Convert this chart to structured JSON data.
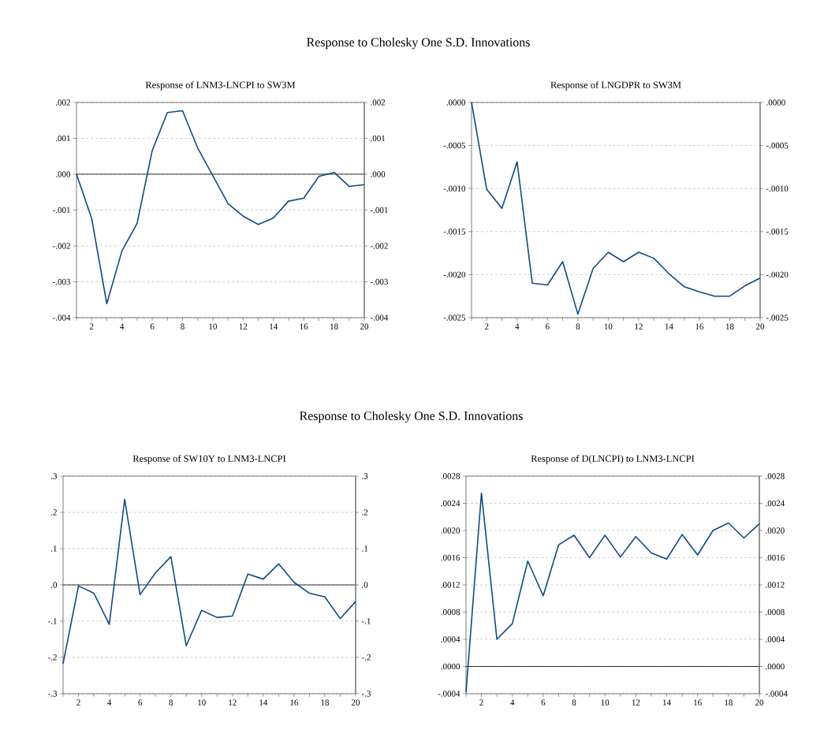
{
  "chart_data": [
    {
      "type": "line",
      "title": "Response of LNM3-LNCPI to SW3M",
      "annotations": [
        "Response to Cholesky One S.D. Innovations"
      ],
      "x": [
        1,
        2,
        3,
        4,
        5,
        6,
        7,
        8,
        9,
        10,
        11,
        12,
        13,
        14,
        15,
        16,
        17,
        18,
        19,
        20
      ],
      "series": [
        {
          "color": "#0c4a8a",
          "values": [
            0,
            -0.00123,
            -0.00361,
            -0.00214,
            -0.00137,
            0.00066,
            0.00172,
            0.00177,
            0.00073,
            -4e-05,
            -0.00082,
            -0.00117,
            -0.0014,
            -0.00122,
            -0.00075,
            -0.00067,
            -6e-05,
            5e-05,
            -0.00034,
            -0.00029
          ]
        }
      ],
      "xlim": [
        1,
        20
      ],
      "xticks": [
        {
          "value": 1,
          "label": null
        },
        2,
        {
          "value": 3,
          "label": null
        },
        4,
        {
          "value": 5,
          "label": null
        },
        6,
        {
          "value": 7,
          "label": null
        },
        8,
        {
          "value": 9,
          "label": null
        },
        10,
        {
          "value": 11,
          "label": null
        },
        12,
        {
          "value": 13,
          "label": null
        },
        14,
        {
          "value": 15,
          "label": null
        },
        16,
        {
          "value": 17,
          "label": null
        },
        18,
        {
          "value": 19,
          "label": null
        },
        20
      ],
      "ylim": [
        -0.004,
        0.002
      ],
      "yticks": [
        {
          "value": -0.004,
          "label": "-.004"
        },
        {
          "value": -0.003,
          "label": "-.003"
        },
        {
          "value": -0.002,
          "label": "-.002"
        },
        {
          "value": -0.001,
          "label": "-.001"
        },
        {
          "value": 0,
          "label": ".000"
        },
        {
          "value": 0.001,
          "label": ".001"
        },
        {
          "value": 0.002,
          "label": ".002"
        }
      ],
      "y2lim": [
        -0.004,
        0.002
      ],
      "y2ticks": [
        {
          "value": -0.004,
          "label": "-.004"
        },
        {
          "value": -0.003,
          "label": "-.003"
        },
        {
          "value": -0.002,
          "label": "-.002"
        },
        {
          "value": -0.001,
          "label": "-.001"
        },
        {
          "value": 0,
          "label": ".000"
        },
        {
          "value": 0.001,
          "label": ".001"
        },
        {
          "value": 0.002,
          "label": ".002"
        }
      ],
      "ref_lines": [
        {
          "axis": "y",
          "value": 0,
          "color": "#000000"
        }
      ],
      "grid": "y"
    },
    {
      "type": "line",
      "title": "Response of LNGDPR to SW3M",
      "x": [
        1,
        2,
        3,
        4,
        5,
        6,
        7,
        8,
        9,
        10,
        11,
        12,
        13,
        14,
        15,
        16,
        17,
        18,
        19,
        20
      ],
      "series": [
        {
          "color": "#0c4a8a",
          "values": [
            0,
            -0.00101,
            -0.00123,
            -0.00069,
            -0.0021,
            -0.00212,
            -0.00185,
            -0.00246,
            -0.00193,
            -0.00174,
            -0.00185,
            -0.00174,
            -0.00181,
            -0.00199,
            -0.00214,
            -0.0022,
            -0.00225,
            -0.00225,
            -0.00213,
            -0.00204
          ]
        }
      ],
      "xlim": [
        1,
        20
      ],
      "xticks": [
        {
          "value": 1,
          "label": null
        },
        2,
        {
          "value": 3,
          "label": null
        },
        4,
        {
          "value": 5,
          "label": null
        },
        6,
        {
          "value": 7,
          "label": null
        },
        8,
        {
          "value": 9,
          "label": null
        },
        10,
        {
          "value": 11,
          "label": null
        },
        12,
        {
          "value": 13,
          "label": null
        },
        14,
        {
          "value": 15,
          "label": null
        },
        16,
        {
          "value": 17,
          "label": null
        },
        18,
        {
          "value": 19,
          "label": null
        },
        20
      ],
      "ylim": [
        -0.0025,
        0
      ],
      "yticks": [
        {
          "value": -0.0025,
          "label": "-.0025"
        },
        {
          "value": -0.002,
          "label": "-.0020"
        },
        {
          "value": -0.0015,
          "label": "-.0015"
        },
        {
          "value": -0.001,
          "label": "-.0010"
        },
        {
          "value": -0.0005,
          "label": "-.0005"
        },
        {
          "value": 0,
          "label": ".0000"
        }
      ],
      "y2lim": [
        -0.0025,
        0
      ],
      "y2ticks": [
        {
          "value": -0.0025,
          "label": "-.0025"
        },
        {
          "value": -0.002,
          "label": "-.0020"
        },
        {
          "value": -0.0015,
          "label": "-.0015"
        },
        {
          "value": -0.001,
          "label": "-.0010"
        },
        {
          "value": -0.0005,
          "label": "-.0005"
        },
        {
          "value": 0,
          "label": ".0000"
        }
      ],
      "grid": "y"
    },
    {
      "type": "line",
      "title": "Response of SW10Y to LNM3-LNCPI",
      "annotations": [
        "Response to Cholesky One S.D. Innovations"
      ],
      "x": [
        1,
        2,
        3,
        4,
        5,
        6,
        7,
        8,
        9,
        10,
        11,
        12,
        13,
        14,
        15,
        16,
        17,
        18,
        19,
        20
      ],
      "series": [
        {
          "color": "#0c4a8a",
          "values": [
            -0.217,
            -0.003,
            -0.023,
            -0.109,
            0.236,
            -0.027,
            0.033,
            0.078,
            -0.168,
            -0.07,
            -0.09,
            -0.086,
            0.03,
            0.016,
            0.058,
            0.007,
            -0.023,
            -0.033,
            -0.093,
            -0.046
          ]
        }
      ],
      "xlim": [
        1,
        20
      ],
      "xticks": [
        {
          "value": 1,
          "label": null
        },
        2,
        {
          "value": 3,
          "label": null
        },
        4,
        {
          "value": 5,
          "label": null
        },
        6,
        {
          "value": 7,
          "label": null
        },
        8,
        {
          "value": 9,
          "label": null
        },
        10,
        {
          "value": 11,
          "label": null
        },
        12,
        {
          "value": 13,
          "label": null
        },
        14,
        {
          "value": 15,
          "label": null
        },
        16,
        {
          "value": 17,
          "label": null
        },
        18,
        {
          "value": 19,
          "label": null
        },
        20
      ],
      "ylim": [
        -0.3,
        0.3
      ],
      "yticks": [
        {
          "value": -0.3,
          "label": "-.3"
        },
        {
          "value": -0.2,
          "label": "-.2"
        },
        {
          "value": -0.1,
          "label": "-.1"
        },
        {
          "value": 0,
          "label": ".0"
        },
        {
          "value": 0.1,
          "label": ".1"
        },
        {
          "value": 0.2,
          "label": ".2"
        },
        {
          "value": 0.3,
          "label": ".3"
        }
      ],
      "y2lim": [
        -0.3,
        0.3
      ],
      "y2ticks": [
        {
          "value": -0.3,
          "label": "-.3"
        },
        {
          "value": -0.2,
          "label": "-.2"
        },
        {
          "value": -0.1,
          "label": "-.1"
        },
        {
          "value": 0,
          "label": ".0"
        },
        {
          "value": 0.1,
          "label": ".1"
        },
        {
          "value": 0.2,
          "label": ".2"
        },
        {
          "value": 0.3,
          "label": ".3"
        }
      ],
      "ref_lines": [
        {
          "axis": "y",
          "value": 0,
          "color": "#000000"
        }
      ],
      "grid": "y"
    },
    {
      "type": "line",
      "title": "Response of D(LNCPI) to LNM3-LNCPI",
      "x": [
        1,
        2,
        3,
        4,
        5,
        6,
        7,
        8,
        9,
        10,
        11,
        12,
        13,
        14,
        15,
        16,
        17,
        18,
        19,
        20
      ],
      "series": [
        {
          "color": "#0c4a8a",
          "values": [
            -0.00038,
            0.00255,
            0.0004,
            0.00063,
            0.00155,
            0.00104,
            0.00179,
            0.00193,
            0.0016,
            0.00193,
            0.00161,
            0.00191,
            0.00167,
            0.00158,
            0.00194,
            0.00164,
            0.002,
            0.00211,
            0.00189,
            0.0021
          ]
        }
      ],
      "xlim": [
        1,
        20
      ],
      "xticks": [
        {
          "value": 1,
          "label": null
        },
        2,
        {
          "value": 3,
          "label": null
        },
        4,
        {
          "value": 5,
          "label": null
        },
        6,
        {
          "value": 7,
          "label": null
        },
        8,
        {
          "value": 9,
          "label": null
        },
        10,
        {
          "value": 11,
          "label": null
        },
        12,
        {
          "value": 13,
          "label": null
        },
        14,
        {
          "value": 15,
          "label": null
        },
        16,
        {
          "value": 17,
          "label": null
        },
        18,
        {
          "value": 19,
          "label": null
        },
        20
      ],
      "ylim": [
        -0.0004,
        0.0028
      ],
      "yticks": [
        {
          "value": -0.0004,
          "label": "-.0004"
        },
        {
          "value": 0,
          "label": ".0000"
        },
        {
          "value": 0.0004,
          "label": ".0004"
        },
        {
          "value": 0.0008,
          "label": ".0008"
        },
        {
          "value": 0.0012,
          "label": ".0012"
        },
        {
          "value": 0.0016,
          "label": ".0016"
        },
        {
          "value": 0.002,
          "label": ".0020"
        },
        {
          "value": 0.0024,
          "label": ".0024"
        },
        {
          "value": 0.0028,
          "label": ".0028"
        }
      ],
      "y2lim": [
        -0.0004,
        0.0028
      ],
      "y2ticks": [
        {
          "value": -0.0004,
          "label": "-.0004"
        },
        {
          "value": 0,
          "label": ".0000"
        },
        {
          "value": 0.0004,
          "label": ".0004"
        },
        {
          "value": 0.0008,
          "label": ".0008"
        },
        {
          "value": 0.0012,
          "label": ".0012"
        },
        {
          "value": 0.0016,
          "label": ".0016"
        },
        {
          "value": 0.002,
          "label": ".0020"
        },
        {
          "value": 0.0024,
          "label": ".0024"
        },
        {
          "value": 0.0028,
          "label": ".0028"
        }
      ],
      "ref_lines": [
        {
          "axis": "y",
          "value": 0,
          "color": "#000000"
        }
      ],
      "grid": "y"
    }
  ]
}
